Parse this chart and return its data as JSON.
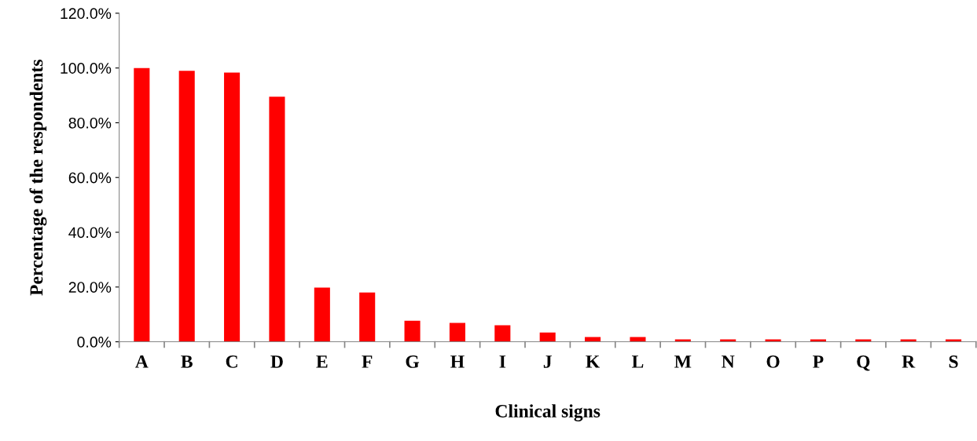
{
  "chart_data": {
    "type": "bar",
    "xlabel": "Clinical signs",
    "ylabel": "Percentage of the respondents",
    "categories": [
      "A",
      "B",
      "C",
      "D",
      "E",
      "F",
      "G",
      "H",
      "I",
      "J",
      "K",
      "L",
      "M",
      "N",
      "O",
      "P",
      "Q",
      "R",
      "S"
    ],
    "values": [
      100,
      99,
      98.3,
      89.5,
      19.8,
      18,
      7.7,
      6.9,
      6,
      3.4,
      1.7,
      1.7,
      0.9,
      0.9,
      0.9,
      0.9,
      0.9,
      0.9,
      0.9
    ],
    "color": "#ff0000",
    "ylim": [
      0,
      120
    ],
    "yticks": [
      {
        "value": 0,
        "label": "0.0%"
      },
      {
        "value": 20,
        "label": "20.0%"
      },
      {
        "value": 40,
        "label": "40.0%"
      },
      {
        "value": 60,
        "label": "60.0%"
      },
      {
        "value": 80,
        "label": "80.0%"
      },
      {
        "value": 100,
        "label": "100.0%"
      },
      {
        "value": 120,
        "label": "120.0%"
      }
    ],
    "grid": false,
    "legend": false
  }
}
